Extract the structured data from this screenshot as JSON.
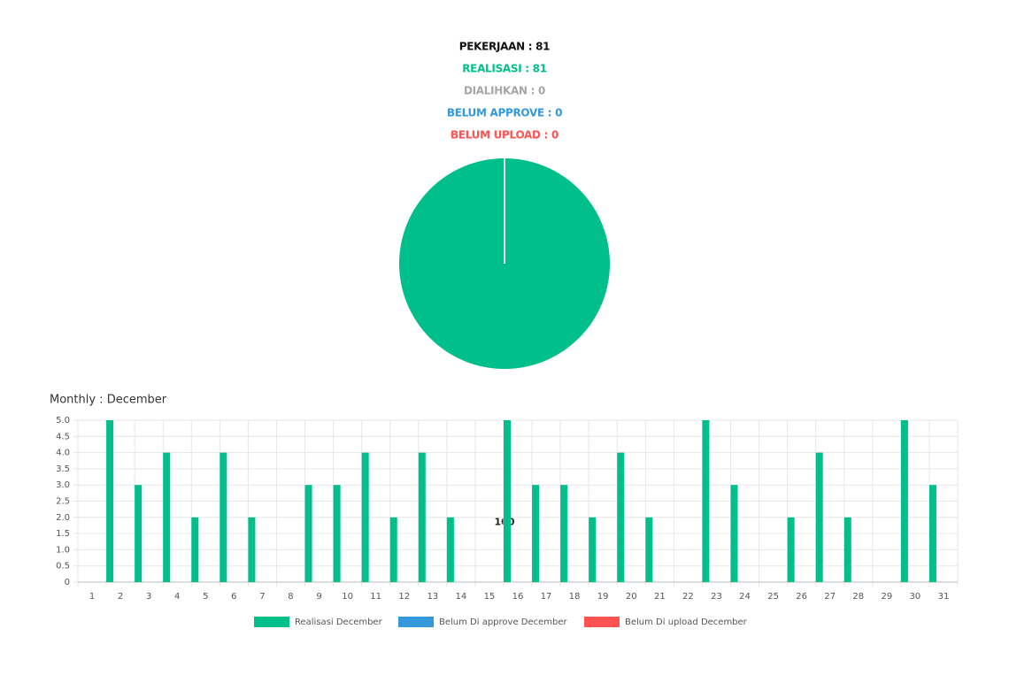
{
  "summary": [
    {
      "text": "PEKERJAAN : 81",
      "color": "#111111"
    },
    {
      "text": "REALISASI : 81",
      "color": "#00bf8a"
    },
    {
      "text": "DIALIHKAN : 0",
      "color": "#a6a6a6"
    },
    {
      "text": "BELUM APPROVE : 0",
      "color": "#3498db"
    },
    {
      "text": "BELUM UPLOAD : 0",
      "color": "#ff5252"
    }
  ],
  "chart_data": [
    {
      "type": "pie",
      "values": [
        100
      ],
      "colors": [
        "#00bf8a"
      ]
    },
    {
      "type": "bar",
      "title": "Monthly : December",
      "categories": [
        "1",
        "2",
        "3",
        "4",
        "5",
        "6",
        "7",
        "8",
        "9",
        "10",
        "11",
        "12",
        "13",
        "14",
        "15",
        "16",
        "17",
        "18",
        "19",
        "20",
        "21",
        "22",
        "23",
        "24",
        "25",
        "26",
        "27",
        "28",
        "29",
        "30",
        "31"
      ],
      "series": [
        {
          "name": "Realisasi December",
          "color": "#00bf8a",
          "values": [
            0,
            5,
            3,
            4,
            2,
            4,
            2,
            0,
            3,
            3,
            4,
            2,
            4,
            2,
            0,
            5,
            3,
            3,
            2,
            4,
            2,
            0,
            5,
            3,
            0,
            2,
            4,
            2,
            0,
            5,
            3
          ]
        },
        {
          "name": "Belum Di approve December",
          "color": "#3498db",
          "values": [
            0,
            0,
            0,
            0,
            0,
            0,
            0,
            0,
            0,
            0,
            0,
            0,
            0,
            0,
            0,
            0,
            0,
            0,
            0,
            0,
            0,
            0,
            0,
            0,
            0,
            0,
            0,
            0,
            0,
            0,
            0
          ]
        },
        {
          "name": "Belum Di upload December",
          "color": "#ff5252",
          "values": [
            0,
            0,
            0,
            0,
            0,
            0,
            0,
            0,
            0,
            0,
            0,
            0,
            0,
            0,
            0,
            0,
            0,
            0,
            0,
            0,
            0,
            0,
            0,
            0,
            0,
            0,
            0,
            0,
            0,
            0,
            0
          ]
        }
      ],
      "ylim": [
        0,
        5
      ],
      "yticks": [
        0,
        0.5,
        {
          "value": 1,
          "label": "1.0"
        },
        1.5,
        {
          "value": 2,
          "label": "2.0"
        },
        2.5,
        {
          "value": 3,
          "label": "3.0"
        },
        3.5,
        {
          "value": 4,
          "label": "4.0"
        },
        4.5,
        {
          "value": 5,
          "label": "5.0"
        }
      ],
      "grid": true,
      "legend": "bottom"
    }
  ]
}
